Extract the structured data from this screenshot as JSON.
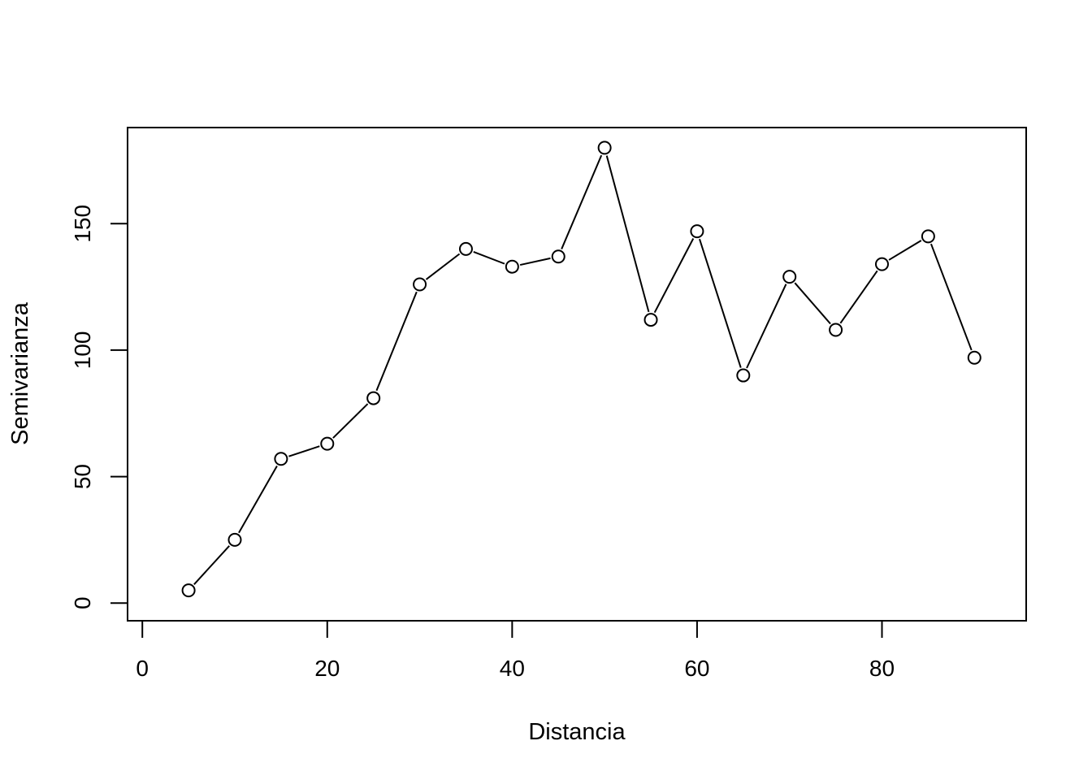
{
  "chart_data": {
    "type": "line",
    "markers": "open-circle",
    "title": "",
    "xlabel": "Distancia",
    "ylabel": "Semivarianza",
    "xlim": [
      -1.6,
      95.6
    ],
    "ylim": [
      -7,
      188
    ],
    "xticks": [
      0,
      20,
      40,
      60,
      80
    ],
    "yticks": [
      0,
      50,
      100,
      150
    ],
    "grid": false,
    "legend": "none",
    "colors": {
      "line": "#000000",
      "marker_fill": "#ffffff",
      "axis": "#000000"
    },
    "series": [
      {
        "x": [
          5,
          10,
          15,
          20,
          25,
          30,
          35,
          40,
          45,
          50,
          55,
          60,
          65,
          70,
          75,
          80,
          85,
          90
        ],
        "y": [
          5,
          25,
          57,
          63,
          81,
          126,
          140,
          133,
          137,
          180,
          112,
          147,
          90,
          129,
          108,
          134,
          145,
          97
        ]
      }
    ]
  }
}
